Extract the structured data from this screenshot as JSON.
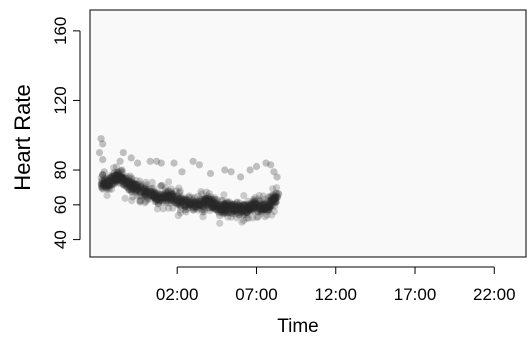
{
  "chart_data": {
    "type": "scatter",
    "title": "",
    "xlabel": "Time",
    "ylabel": "Heart Rate",
    "x_tick_labels": [
      "02:00",
      "07:00",
      "12:00",
      "17:00",
      "22:00"
    ],
    "x_ticks_hours": [
      2,
      7,
      12,
      17,
      22
    ],
    "xlim_hours": [
      -3.5,
      24.0
    ],
    "y_ticks": [
      40,
      60,
      80,
      120,
      160
    ],
    "y_tick_labels": [
      "40",
      "60",
      "80",
      "120",
      "160"
    ],
    "ylim": [
      30,
      172
    ],
    "grid": false,
    "legend": "none",
    "plot_background": "#f9f9f9",
    "point_color": "#2a2a2a",
    "trend": {
      "x_hours": [
        -2.8,
        -2.4,
        -2.0,
        -1.6,
        -1.2,
        -0.8,
        -0.4,
        0.0,
        0.4,
        0.8,
        1.2,
        1.6,
        2.0,
        2.4,
        2.8,
        3.2,
        3.6,
        4.0,
        4.4,
        4.8,
        5.2,
        5.6,
        6.0,
        6.4,
        6.8,
        7.2,
        7.6,
        8.0,
        8.4
      ],
      "y_values": [
        73,
        72,
        75,
        76,
        73,
        71,
        69,
        67,
        66,
        64,
        64,
        65,
        62,
        62,
        61,
        60,
        61,
        62,
        59,
        58,
        59,
        58,
        58,
        58,
        60,
        59,
        58,
        62,
        65
      ]
    },
    "outliers": [
      {
        "x": -2.8,
        "y": 98
      },
      {
        "x": -2.7,
        "y": 95
      },
      {
        "x": -2.9,
        "y": 90
      },
      {
        "x": -2.7,
        "y": 86
      },
      {
        "x": -1.6,
        "y": 85
      },
      {
        "x": -1.4,
        "y": 90
      },
      {
        "x": -0.9,
        "y": 87
      },
      {
        "x": -0.5,
        "y": 84
      },
      {
        "x": 0.3,
        "y": 85
      },
      {
        "x": 0.7,
        "y": 85
      },
      {
        "x": 1.0,
        "y": 84
      },
      {
        "x": 1.8,
        "y": 84
      },
      {
        "x": 3.0,
        "y": 85
      },
      {
        "x": 3.4,
        "y": 83
      },
      {
        "x": 5.0,
        "y": 80
      },
      {
        "x": 5.4,
        "y": 79
      },
      {
        "x": 6.6,
        "y": 80
      },
      {
        "x": 7.0,
        "y": 82
      },
      {
        "x": 7.6,
        "y": 84
      },
      {
        "x": 7.9,
        "y": 83
      },
      {
        "x": 8.1,
        "y": 79
      },
      {
        "x": -2.6,
        "y": 79
      },
      {
        "x": 2.3,
        "y": 79
      },
      {
        "x": 4.1,
        "y": 78
      },
      {
        "x": 6.0,
        "y": 76
      },
      {
        "x": 8.3,
        "y": 76
      }
    ]
  }
}
